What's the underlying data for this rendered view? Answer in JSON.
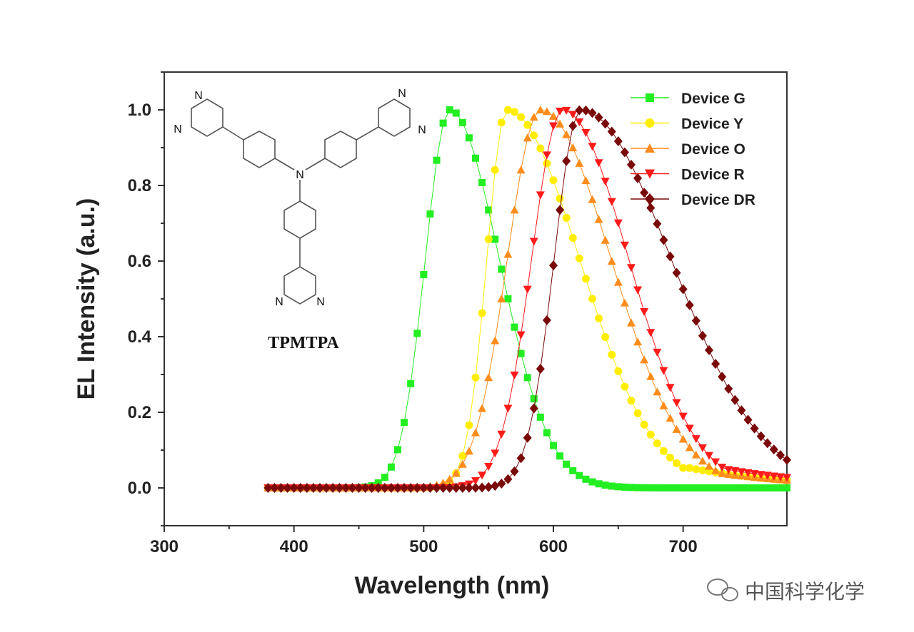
{
  "chart_data": {
    "type": "scatter",
    "xlabel": "Wavelength (nm)",
    "ylabel": "EL Intensity (a.u.)",
    "xlim": [
      300,
      780
    ],
    "ylim": [
      -0.1,
      1.1
    ],
    "xticks": [
      300,
      400,
      500,
      600,
      700
    ],
    "xtick_labels": [
      "300",
      "400",
      "500",
      "600",
      "700"
    ],
    "yticks": [
      0.0,
      0.2,
      0.4,
      0.6,
      0.8,
      1.0
    ],
    "ytick_labels": [
      "0.0",
      "0.2",
      "0.4",
      "0.6",
      "0.8",
      "1.0"
    ],
    "legend_position": "top-right",
    "series": [
      {
        "name": "Device G",
        "color": "#22ee22",
        "marker": "square",
        "peak": 520,
        "fwhm_left": 22,
        "fwhm_right": 45,
        "tail": 0.0
      },
      {
        "name": "Device Y",
        "color": "#ffee00",
        "marker": "circle",
        "peak": 564,
        "fwhm_left": 18,
        "fwhm_right": 66,
        "tail": 0.03
      },
      {
        "name": "Device O",
        "color": "#ff8c1a",
        "marker": "triangle-up",
        "peak": 590,
        "fwhm_left": 30,
        "fwhm_right": 64,
        "tail": 0.03
      },
      {
        "name": "Device R",
        "color": "#ff1a1a",
        "marker": "triangle-down",
        "peak": 607,
        "fwhm_left": 28,
        "fwhm_right": 60,
        "tail": 0.04
      },
      {
        "name": "Device DR",
        "color": "#7a0a0a",
        "marker": "diamond",
        "peak": 621,
        "fwhm_left": 24,
        "fwhm_right": 82,
        "tail": 0.06
      }
    ],
    "x_start": 380,
    "x_end": 780,
    "x_step": 5
  },
  "molecule": {
    "name": "TPMTPA",
    "atoms": [
      "N",
      "N",
      "N",
      "N",
      "N",
      "N",
      "N"
    ]
  },
  "watermark": "中国科学化学"
}
